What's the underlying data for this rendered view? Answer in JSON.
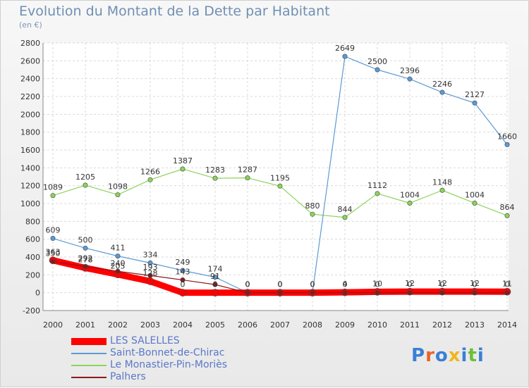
{
  "title": "Evolution du Montant de la Dette par Habitant",
  "subtitle": "(en €)",
  "logo": "Proxiti",
  "chart_data": {
    "type": "line",
    "x": [
      2000,
      2001,
      2002,
      2003,
      2004,
      2005,
      2006,
      2007,
      2008,
      2009,
      2010,
      2011,
      2012,
      2013,
      2014
    ],
    "ylim": [
      -200,
      2800
    ],
    "yticks": [
      -200,
      0,
      200,
      400,
      600,
      800,
      1000,
      1200,
      1400,
      1600,
      1800,
      2000,
      2200,
      2400,
      2600,
      2800
    ],
    "grid": true,
    "legend_position": "bottom-left",
    "series": [
      {
        "name": "LES SALELLES",
        "color": "#ff0000",
        "values": [
          363,
          278,
          205,
          128,
          0,
          0,
          0,
          0,
          0,
          4,
          10,
          12,
          12,
          12,
          11
        ]
      },
      {
        "name": "Saint-Bonnet-de-Chirac",
        "color": "#5b9bd5",
        "values": [
          609,
          500,
          411,
          334,
          249,
          174,
          0,
          0,
          0,
          2649,
          2500,
          2396,
          2246,
          2127,
          1660
        ]
      },
      {
        "name": "Le Monastier-Pin-Moriès",
        "color": "#8cd45a",
        "values": [
          1089,
          1205,
          1098,
          1266,
          1387,
          1283,
          1287,
          1195,
          880,
          844,
          1112,
          1004,
          1148,
          1004,
          864
        ]
      },
      {
        "name": "Palhers",
        "color": "#8b1a1a",
        "values": [
          350,
          292,
          240,
          193,
          143,
          91,
          0,
          0,
          0,
          0,
          0,
          0,
          0,
          0,
          0
        ]
      }
    ]
  }
}
